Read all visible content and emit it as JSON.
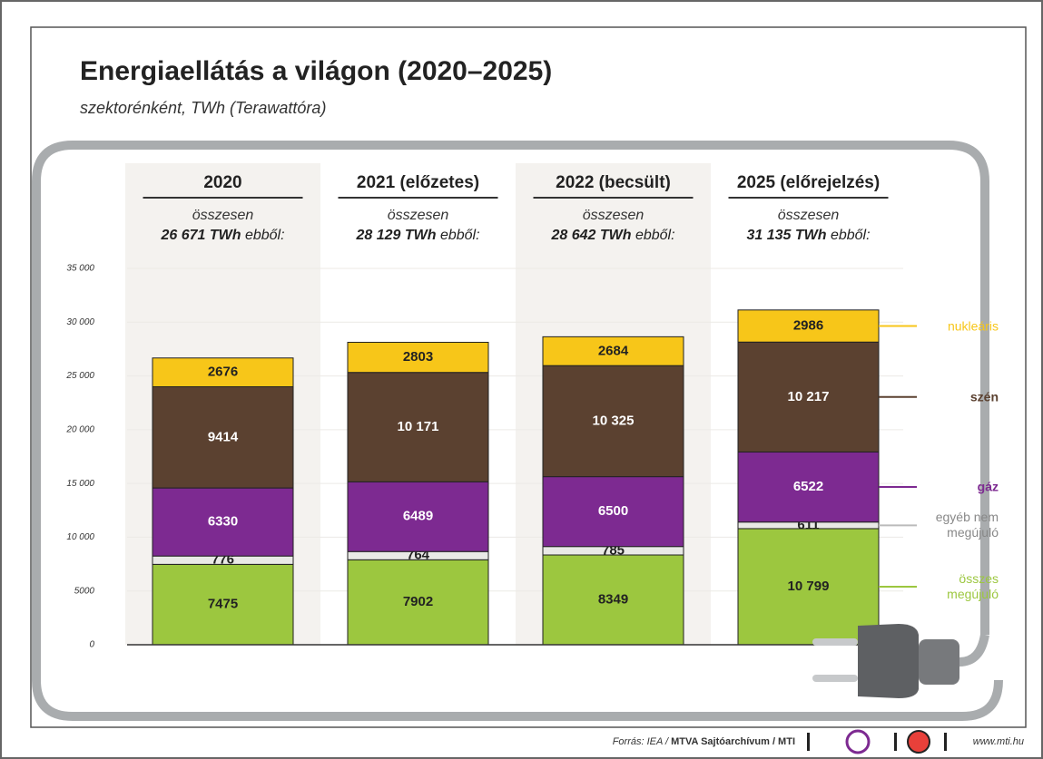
{
  "chart_data": {
    "type": "stacked-bar",
    "title": "Energiaellátás a világon (2020–2025)",
    "subtitle": "szektorénként, TWh (Terawattóra)",
    "categories": [
      "2020",
      "2021 (előzetes)",
      "2022 (becsült)",
      "2025 (előrejelzés)"
    ],
    "annotations": [
      {
        "line1": "összesen",
        "total": "26 671 TWh",
        "suffix": "ebből:"
      },
      {
        "line1": "összesen",
        "total": "28 129 TWh",
        "suffix": "ebből:"
      },
      {
        "line1": "összesen",
        "total": "28 642 TWh",
        "suffix": "ebből:"
      },
      {
        "line1": "összesen",
        "total": "31 135 TWh",
        "suffix": "ebből:"
      }
    ],
    "series": [
      {
        "name": "összes megújuló",
        "color": "#9cc73f",
        "values": [
          7475,
          7902,
          8349,
          10799
        ],
        "value_labels": [
          "7475",
          "7902",
          "8349",
          "10 799"
        ]
      },
      {
        "name": "egyéb nem megújuló",
        "color": "#e9e9e6",
        "values": [
          776,
          764,
          785,
          611
        ]
      },
      {
        "name": "gáz",
        "color": "#7d2a91",
        "values": [
          6330,
          6489,
          6500,
          6522
        ]
      },
      {
        "name": "szén",
        "color": "#5b4130",
        "values": [
          9414,
          10171,
          10325,
          10217
        ],
        "value_labels": [
          "9414",
          "10 171",
          "10 325",
          "10 217"
        ]
      },
      {
        "name": "nukleáris",
        "color": "#f7c619",
        "values": [
          2676,
          2803,
          2684,
          2986
        ]
      }
    ],
    "ylim": [
      0,
      35000
    ],
    "yticks": [
      0,
      5000,
      {
        "value": 10000,
        "label": "10 000"
      },
      {
        "value": 15000,
        "label": "15 000"
      },
      {
        "value": 20000,
        "label": "20 000"
      },
      {
        "value": 25000,
        "label": "25 000"
      },
      {
        "value": 30000,
        "label": "30 000"
      },
      {
        "value": 35000,
        "label": "35 000"
      }
    ],
    "grid": true
  },
  "footer": {
    "source_prefix": "Forrás: IEA /",
    "source": "MTVA Sajtóarchívum / MTI",
    "url": "www.mti.hu"
  }
}
